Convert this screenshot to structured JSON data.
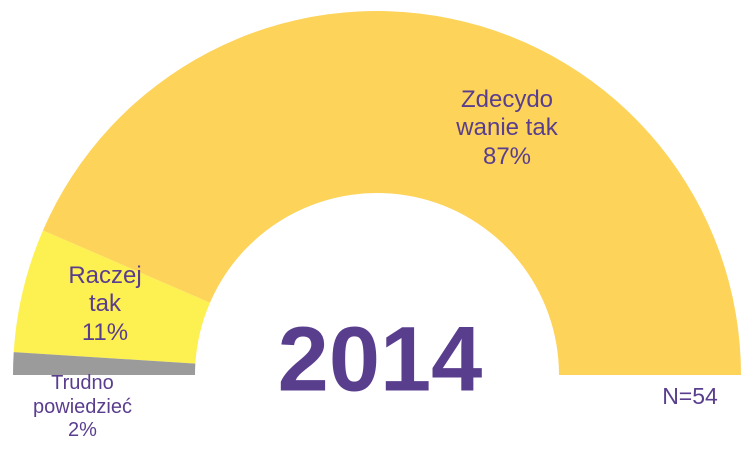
{
  "chart_data": {
    "type": "half-donut",
    "title": "2014",
    "annotation": "N=54",
    "categories": [
      "Trudno powiedzieć",
      "Raczej tak",
      "Zdecydo wanie tak"
    ],
    "values": [
      2,
      11,
      87
    ],
    "value_labels": [
      "2%",
      "11%",
      "87%"
    ],
    "colors": [
      "#9b9b9b",
      "#fdf051",
      "#fdd35a"
    ]
  }
}
